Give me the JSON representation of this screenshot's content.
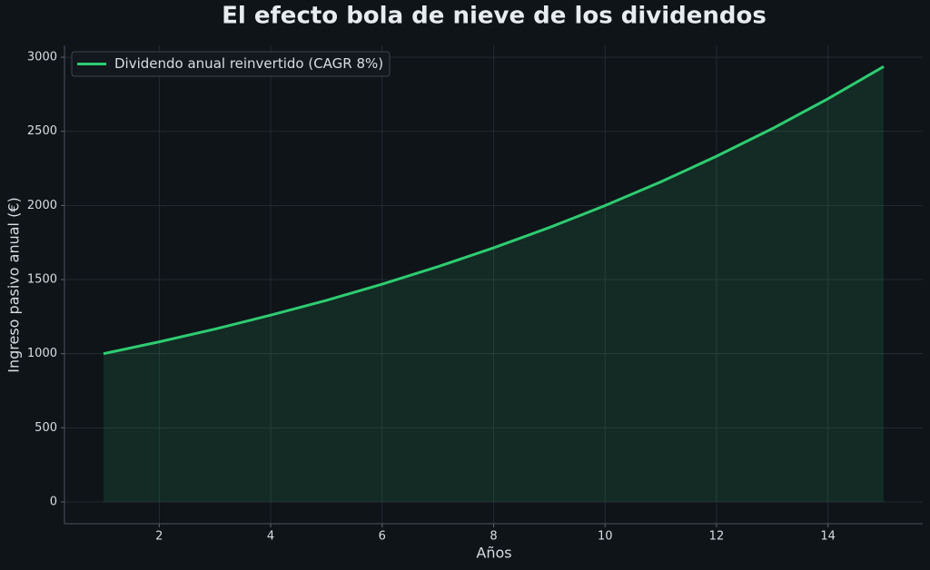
{
  "chart_data": {
    "type": "line",
    "title": "El efecto bola de nieve de los dividendos",
    "xlabel": "Años",
    "ylabel": "Ingreso pasivo anual (€)",
    "x": [
      1,
      2,
      3,
      4,
      5,
      6,
      7,
      8,
      9,
      10,
      11,
      12,
      13,
      14,
      15
    ],
    "series": [
      {
        "name": "Dividendo anual reinvertido (CAGR 8%)",
        "color": "#2ecc71",
        "values": [
          1000,
          1080,
          1166,
          1260,
          1360,
          1469,
          1587,
          1714,
          1851,
          1999,
          2159,
          2332,
          2518,
          2720,
          2937
        ]
      }
    ],
    "fill": true,
    "xlim": [
      0.3,
      15.7
    ],
    "xticks": [
      2,
      4,
      6,
      8,
      10,
      12,
      14
    ],
    "ylim": [
      -147,
      3080
    ],
    "yticks": [
      0,
      500,
      1000,
      1500,
      2000,
      2500,
      3000
    ],
    "grid": true,
    "legend": "upper-left"
  }
}
